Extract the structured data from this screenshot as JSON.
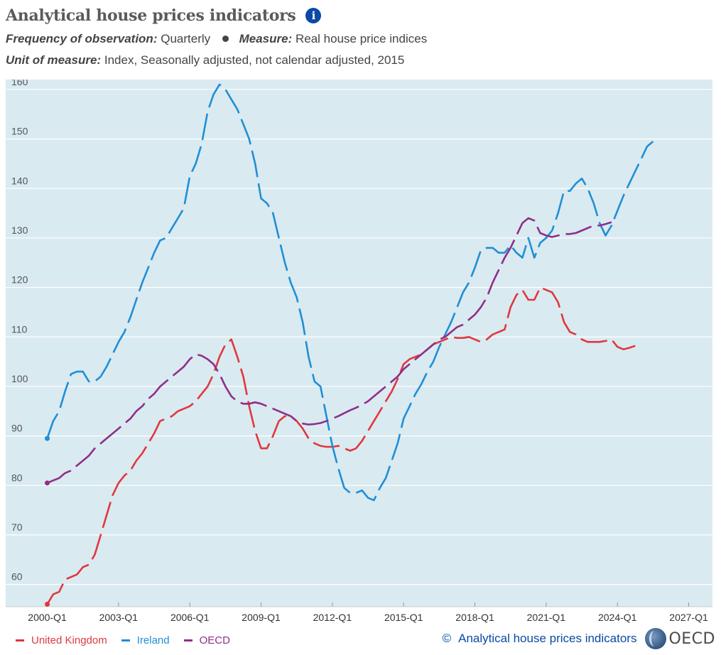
{
  "header": {
    "title": "Analytical house prices indicators",
    "info_glyph": "i",
    "frequency_label": "Frequency of observation:",
    "frequency_value": "Quarterly",
    "measure_label": "Measure:",
    "measure_value": "Real house price indices",
    "unit_label": "Unit of measure:",
    "unit_value": "Index, Seasonally adjusted, not calendar adjusted, 2015"
  },
  "footer": {
    "copyright_glyph": "©",
    "source_text": "Analytical house prices indicators",
    "logo_text": "OECD"
  },
  "colors": {
    "plot_background": "#daeaf1",
    "grid": "#ffffff",
    "united_kingdom": "#e0383d",
    "ireland": "#1f8fd6",
    "oecd": "#8e2f8a",
    "accent": "#0a4aa6"
  },
  "chart_data": {
    "type": "line",
    "title": "Analytical house prices indicators",
    "xlabel": "",
    "ylabel": "",
    "x_start": "2000-Q1",
    "x_ticks": [
      "2000-Q1",
      "2003-Q1",
      "2006-Q1",
      "2009-Q1",
      "2012-Q1",
      "2015-Q1",
      "2018-Q1",
      "2021-Q1",
      "2024-Q1",
      "2027-Q1"
    ],
    "y_ticks": [
      60,
      70,
      80,
      90,
      100,
      110,
      120,
      130,
      140,
      150,
      160
    ],
    "xlim": [
      "1998-Q2",
      "2028-Q1"
    ],
    "ylim": [
      55.5,
      162
    ],
    "grid": true,
    "legend_position": "bottom-left",
    "series": [
      {
        "name": "United Kingdom",
        "color": "#e0383d",
        "values": [
          56,
          58,
          58.5,
          61,
          61.5,
          62,
          63.5,
          64,
          66,
          70,
          74,
          78,
          80.5,
          82,
          83,
          85,
          86.5,
          88.5,
          90.5,
          93,
          93.5,
          94,
          95,
          95.5,
          96,
          97,
          98.5,
          100,
          102.5,
          106,
          108.5,
          109.5,
          106,
          102,
          96,
          91,
          87.5,
          87.5,
          90,
          93,
          94,
          94,
          93,
          91.5,
          89.5,
          88.5,
          88,
          87.8,
          87.8,
          88,
          87.5,
          87,
          87.5,
          89,
          91,
          93,
          95,
          97,
          99,
          101.5,
          104.5,
          105.5,
          106,
          106.5,
          107.5,
          108.5,
          109,
          109.5,
          110,
          109.8,
          109.8,
          110,
          109.5,
          109,
          109.5,
          110.5,
          111,
          111.5,
          116,
          118.5,
          119.5,
          117.5,
          117.5,
          120,
          119.5,
          119,
          117,
          113,
          111,
          110.5,
          109.5,
          109,
          109,
          109,
          109.2,
          109.5,
          108,
          107.5,
          107.8,
          108.2
        ]
      },
      {
        "name": "Ireland",
        "color": "#1f8fd6",
        "values": [
          89.5,
          93,
          95,
          99,
          102.5,
          103,
          103,
          101,
          101,
          102,
          104,
          106.5,
          109,
          111,
          114,
          117.5,
          121,
          124,
          127,
          129.5,
          130,
          132,
          134,
          136,
          142.5,
          145,
          149,
          155.5,
          159,
          161,
          160,
          158,
          156,
          153,
          150,
          145,
          138,
          137,
          135,
          130,
          125,
          121,
          118,
          113,
          106,
          101,
          100,
          94,
          88,
          83.5,
          79.5,
          78.5,
          78.5,
          79,
          77.5,
          77,
          79.5,
          81.5,
          85,
          88.5,
          93.5,
          96,
          98.5,
          100.5,
          103,
          105,
          108,
          110.5,
          113,
          116,
          119,
          121,
          124,
          127.5,
          128,
          128,
          127,
          127,
          128.5,
          127,
          126,
          130,
          126,
          129,
          130,
          131.5,
          135,
          139.5,
          139.5,
          141,
          142,
          140,
          137,
          133,
          130.5,
          132.5,
          135.5,
          138.5,
          141,
          143.5,
          146,
          148.5,
          149.5
        ]
      },
      {
        "name": "OECD",
        "color": "#8e2f8a",
        "values": [
          80.5,
          81,
          81.5,
          82.5,
          83,
          84,
          85,
          86,
          87.5,
          88.5,
          89.5,
          90.5,
          91.5,
          92.5,
          93.5,
          95,
          96,
          97.5,
          98.5,
          100,
          101,
          102,
          103,
          104,
          105.5,
          106.5,
          106.2,
          105.5,
          104.5,
          102.5,
          100,
          98,
          97,
          96.5,
          96.5,
          96.8,
          96.5,
          96,
          95.5,
          95,
          94.5,
          94,
          93,
          92.5,
          92.3,
          92.4,
          92.6,
          93,
          93.5,
          94,
          94.6,
          95.2,
          95.7,
          96.3,
          97,
          98,
          99,
          100,
          101,
          102,
          103.5,
          104.5,
          105.5,
          106.5,
          107.5,
          108.5,
          109.5,
          110,
          111,
          112,
          112.5,
          113.5,
          114.5,
          116,
          118,
          121,
          123.5,
          126,
          128,
          130.5,
          133,
          134,
          133.5,
          131,
          130.5,
          130.2,
          130.5,
          130.8,
          130.8,
          131,
          131.5,
          132,
          132.5,
          132.5,
          132.8,
          133.2
        ]
      }
    ]
  }
}
